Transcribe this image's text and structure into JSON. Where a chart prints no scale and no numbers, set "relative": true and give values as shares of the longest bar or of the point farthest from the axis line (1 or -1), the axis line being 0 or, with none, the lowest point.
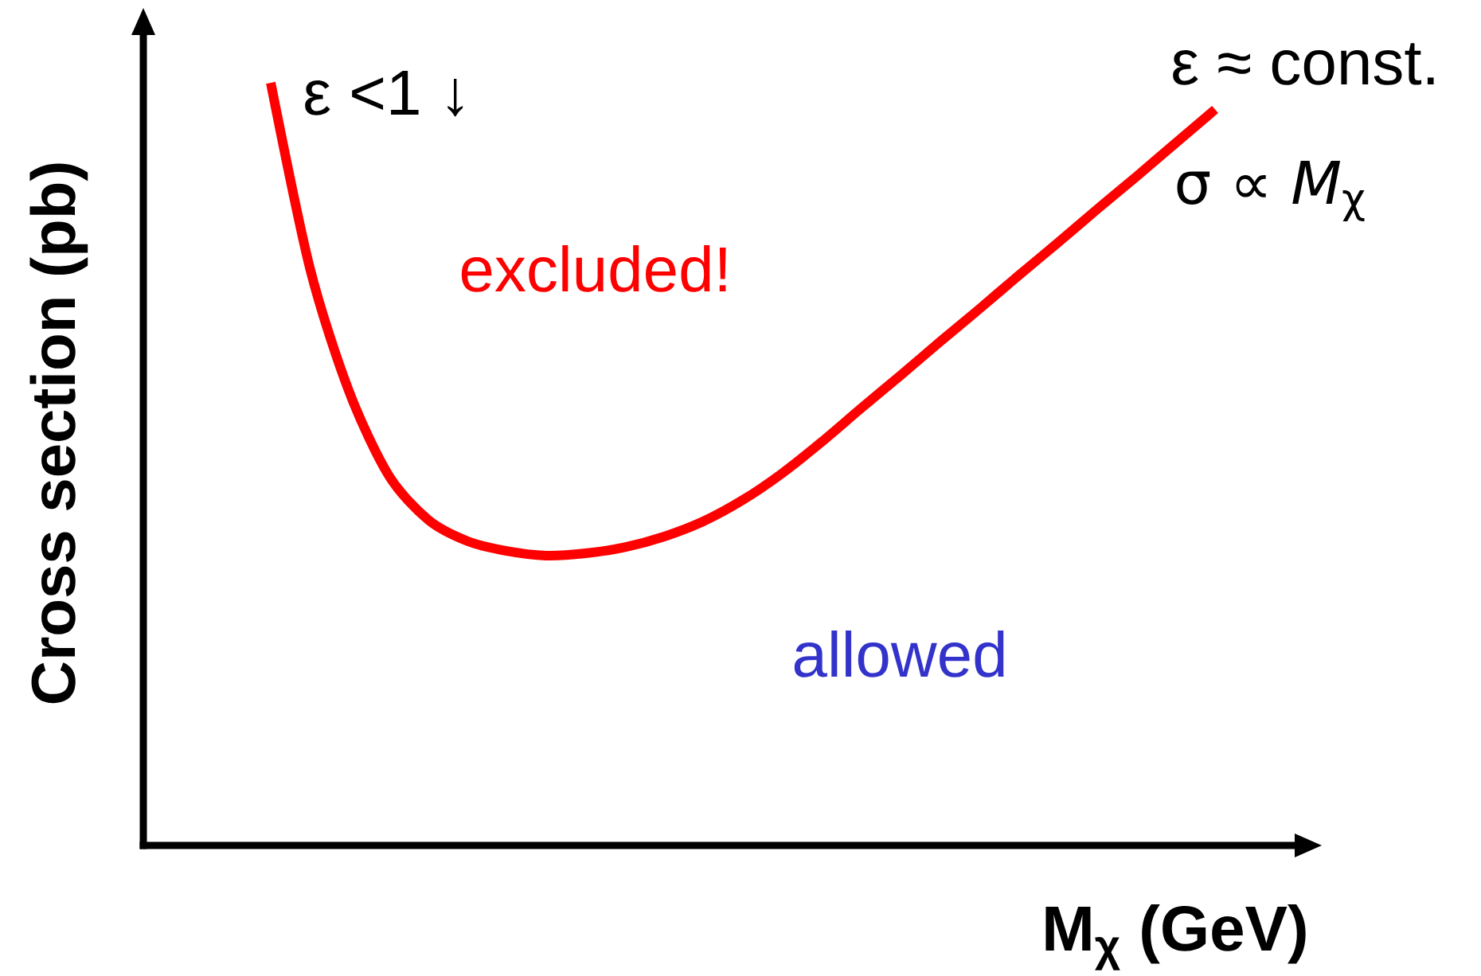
{
  "chart_data": {
    "type": "line",
    "relative": true,
    "xlabel": "M$_{χ}$ (GeV)",
    "ylabel": "Cross section (pb)",
    "categories": [
      null,
      null,
      null,
      null,
      null,
      null,
      null,
      null,
      null,
      null,
      null,
      null,
      null,
      null,
      null,
      null,
      null,
      null,
      null,
      null,
      null,
      null,
      null,
      null,
      null
    ],
    "series": [
      {
        "color": "#ff0000",
        "values": [
          1,
          0.756,
          0.594,
          0.485,
          0.427,
          0.399,
          0.386,
          0.38,
          0.383,
          0.391,
          0.405,
          0.425,
          0.453,
          0.488,
          0.529,
          0.573,
          0.616,
          0.66,
          0.703,
          0.747,
          0.79,
          0.834,
          0.877,
          0.921,
          0.965
        ]
      }
    ],
    "annotations": [
      "ε <1 ↓",
      "ε ≈ const.",
      "σ  ∝ *M*$_{χ}$",
      "excluded!",
      "allowed"
    ],
    "marker": "none",
    "line_style": "solid"
  }
}
